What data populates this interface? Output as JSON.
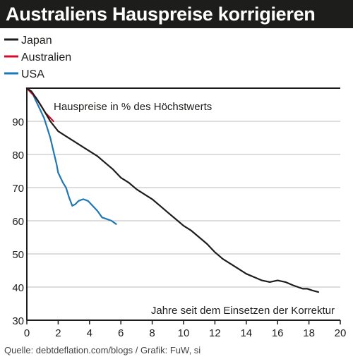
{
  "title": "Australiens Hauspreise korrigieren",
  "source": "Quelle: debtdeflation.com/blogs / Grafik: FuW, si",
  "colors": {
    "title_bg": "#1d1d1b",
    "japan": "#1d1d1b",
    "australien": "#c8102e",
    "usa": "#1f78b4",
    "grid": "#bbbbbb"
  },
  "chart_data": {
    "type": "line",
    "title": "Australiens Hauspreise korrigieren",
    "ylabel": "Hauspreise in % des Höchstwerts",
    "xlabel": "Jahre seit dem Einsetzen der Korrektur",
    "xlim": [
      0,
      20
    ],
    "ylim": [
      30,
      100
    ],
    "xticks": [
      0,
      2,
      4,
      6,
      8,
      10,
      12,
      14,
      16,
      18,
      20
    ],
    "yticks": [
      30,
      40,
      50,
      60,
      70,
      80,
      90
    ],
    "legend_position": "top-left",
    "grid": "horizontal",
    "series": [
      {
        "name": "Japan",
        "color": "#1d1d1b",
        "x": [
          0,
          0.3,
          0.6,
          1.0,
          1.5,
          2.0,
          2.5,
          3.0,
          3.5,
          4.0,
          4.5,
          5.0,
          5.5,
          6.0,
          6.5,
          7.0,
          7.5,
          8.0,
          8.5,
          9.0,
          9.5,
          10.0,
          10.5,
          11.0,
          11.5,
          12.0,
          12.5,
          13.0,
          13.5,
          14.0,
          14.5,
          15.0,
          15.5,
          16.0,
          16.5,
          17.0,
          17.3,
          17.6,
          17.9,
          18.2,
          18.6
        ],
        "y": [
          100,
          99,
          97,
          94,
          90,
          87,
          85.5,
          84,
          82.5,
          81,
          79.5,
          77.5,
          75.5,
          73,
          71.5,
          69.5,
          68,
          66.5,
          64.5,
          62.5,
          60.5,
          58.5,
          57,
          55,
          53,
          50.5,
          48.5,
          47,
          45.5,
          44,
          43,
          42,
          41.5,
          42,
          41.5,
          40.5,
          40,
          39.5,
          39.5,
          39,
          38.5
        ]
      },
      {
        "name": "Australien",
        "color": "#c8102e",
        "x": [
          0,
          0.2,
          0.4,
          0.6,
          0.8,
          1.0,
          1.2,
          1.4,
          1.6,
          1.7
        ],
        "y": [
          100,
          99,
          98,
          97,
          95.5,
          94,
          92.5,
          91.5,
          90.5,
          90
        ]
      },
      {
        "name": "USA",
        "color": "#1f78b4",
        "x": [
          0,
          0.3,
          0.6,
          0.9,
          1.1,
          1.3,
          1.5,
          1.7,
          1.9,
          2.0,
          2.1,
          2.3,
          2.5,
          2.7,
          2.9,
          3.1,
          3.3,
          3.6,
          3.9,
          4.2,
          4.5,
          4.8,
          5.1,
          5.4,
          5.7
        ],
        "y": [
          100,
          99,
          96,
          93,
          91,
          88,
          85,
          81,
          77,
          74.5,
          73.5,
          71.5,
          70,
          67,
          64.5,
          65,
          66,
          66.5,
          66,
          64.5,
          63,
          61,
          60.5,
          60,
          59
        ]
      }
    ]
  }
}
